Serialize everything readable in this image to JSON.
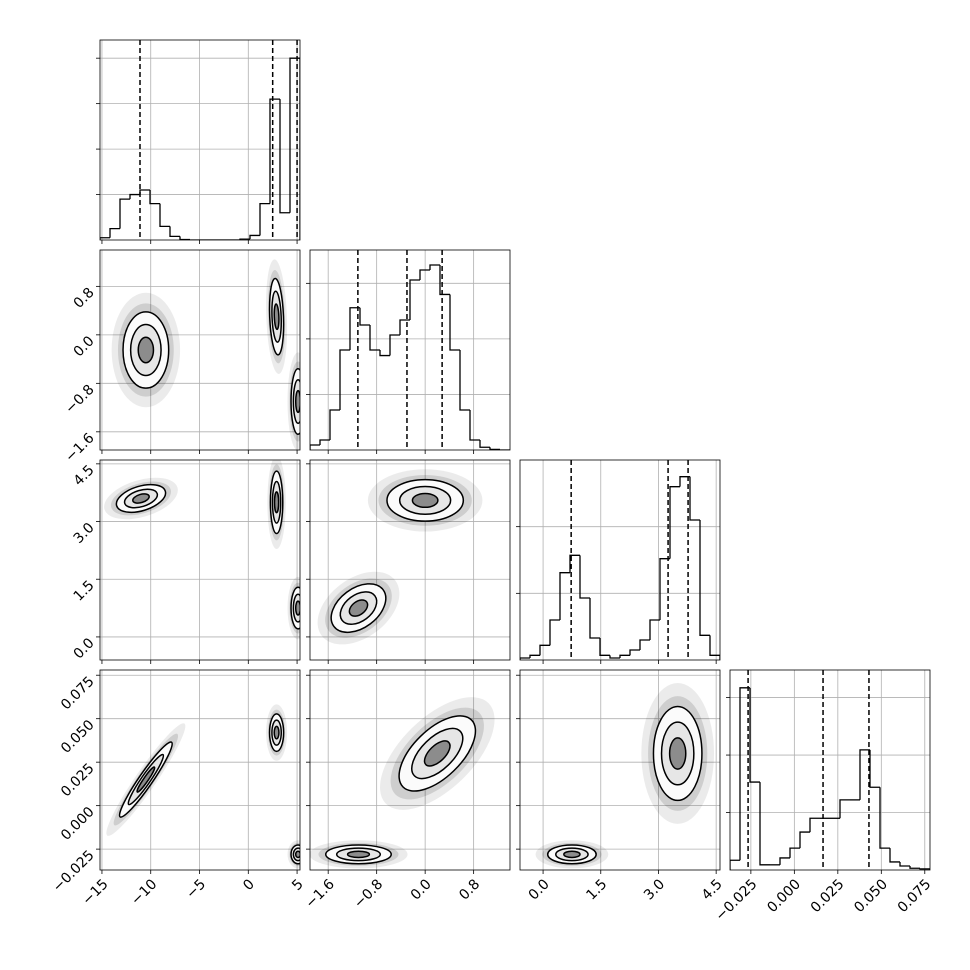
{
  "chart_data": [
    {
      "type": "histogram",
      "bins": [
        -15.2,
        -14.175,
        -13.15,
        -12.125,
        -11.1,
        -10.075,
        -9.05,
        -8.025,
        -7.0,
        -5.975,
        -4.95,
        -3.925,
        -2.9,
        -1.875,
        -0.85,
        0.175,
        1.2,
        2.225,
        3.25,
        4.275,
        5.3
      ],
      "values": [
        0.05,
        0.25,
        0.9,
        1.0,
        1.1,
        0.8,
        0.3,
        0.08,
        0.01,
        0,
        0,
        0,
        0,
        0,
        0.02,
        0.1,
        0.8,
        3.1,
        0.6,
        4.0
      ],
      "quantiles": [
        -11.1,
        2.5,
        5.0
      ],
      "xlim": [
        -15.2,
        5.3
      ],
      "xticks": [
        -15,
        -10,
        -5,
        0,
        5
      ],
      "ylim": [
        0,
        4.4
      ],
      "yticks": [
        1,
        2,
        3,
        4
      ],
      "grid": true,
      "color": "#000000"
    },
    {
      "type": "contour",
      "clusters": [
        {
          "x": -10.5,
          "y": -0.25,
          "sx": 1.3,
          "sy": 0.35,
          "rho": 0.0
        },
        {
          "x": 2.9,
          "y": 0.3,
          "sx": 0.4,
          "sy": 0.35,
          "rho": -0.2
        },
        {
          "x": 5.1,
          "y": -1.1,
          "sx": 0.4,
          "sy": 0.3,
          "rho": 0.0
        }
      ],
      "xlim": [
        -15.2,
        5.3
      ],
      "xticks": [
        -15,
        -10,
        -5,
        0,
        5
      ],
      "ylim": [
        -1.9,
        1.4
      ],
      "yticks": [
        {
          "value": -1.6,
          "label": "−1.6"
        },
        {
          "value": -0.8,
          "label": "−0.8"
        },
        {
          "value": 0,
          "label": "0.0"
        },
        0.8
      ],
      "grid": true
    },
    {
      "type": "histogram",
      "bins": [
        -1.9,
        -1.735,
        -1.57,
        -1.405,
        -1.24,
        -1.075,
        -0.91,
        -0.745,
        -0.58,
        -0.415,
        -0.25,
        -0.085,
        0.08,
        0.245,
        0.41,
        0.575,
        0.74,
        0.905,
        1.07,
        1.235,
        1.4
      ],
      "values": [
        0.09,
        0.18,
        0.72,
        1.8,
        2.56,
        2.25,
        1.8,
        1.7,
        2.07,
        2.34,
        3.06,
        3.24,
        3.33,
        2.8,
        1.8,
        0.72,
        0.18,
        0.05,
        0.01,
        0
      ],
      "quantiles": [
        -1.11,
        -0.3,
        0.28
      ],
      "xlim": [
        -1.9,
        1.4
      ],
      "xticks": [
        -1.6,
        -0.8,
        0,
        0.8
      ],
      "ylim": [
        0,
        3.6
      ],
      "yticks": [
        1,
        2,
        3
      ],
      "grid": true,
      "color": "#000000"
    },
    {
      "type": "contour",
      "clusters": [
        {
          "x": -11,
          "y": 3.6,
          "sx": 1.4,
          "sy": 0.2,
          "rho": 0.4
        },
        {
          "x": 2.9,
          "y": 3.5,
          "sx": 0.35,
          "sy": 0.45,
          "rho": 0.0
        },
        {
          "x": 5.1,
          "y": 0.75,
          "sx": 0.4,
          "sy": 0.3,
          "rho": 0.0
        }
      ],
      "xlim": [
        -15.2,
        5.3
      ],
      "xticks": [
        -15,
        -10,
        -5,
        0,
        5
      ],
      "ylim": [
        -0.6,
        4.6
      ],
      "yticks": [
        {
          "value": 0,
          "label": "0.0"
        },
        1.5,
        {
          "value": 3,
          "label": "3.0"
        },
        4.5
      ],
      "grid": true
    },
    {
      "type": "contour",
      "clusters": [
        {
          "x": -1.1,
          "y": 0.75,
          "sx": 0.25,
          "sy": 0.35,
          "rho": 0.4
        },
        {
          "x": 0.0,
          "y": 3.55,
          "sx": 0.35,
          "sy": 0.3,
          "rho": 0.0
        }
      ],
      "xlim": [
        -1.9,
        1.4
      ],
      "xticks": [
        -1.6,
        -0.8,
        0,
        0.8
      ],
      "ylim": [
        -0.6,
        4.6
      ],
      "yticks": [
        0,
        1.5,
        3,
        4.5
      ],
      "grid": true
    },
    {
      "type": "histogram",
      "bins": [
        -0.6,
        -0.34,
        -0.08,
        0.18,
        0.44,
        0.7,
        0.96,
        1.22,
        1.48,
        1.74,
        2.0,
        2.26,
        2.52,
        2.78,
        3.04,
        3.3,
        3.56,
        3.82,
        4.08,
        4.34,
        4.6
      ],
      "values": [
        0.03,
        0.07,
        0.22,
        0.6,
        1.31,
        1.57,
        0.93,
        0.33,
        0.07,
        0.03,
        0.07,
        0.15,
        0.3,
        0.6,
        1.52,
        2.6,
        2.75,
        2.1,
        0.37,
        0.07
      ],
      "quantiles": [
        0.73,
        3.25,
        3.77
      ],
      "xlim": [
        -0.6,
        4.6
      ],
      "xticks": [
        0,
        1.5,
        3,
        4.5
      ],
      "ylim": [
        0,
        3
      ],
      "yticks": [
        1,
        2
      ],
      "grid": true,
      "color": "#000000"
    },
    {
      "type": "contour",
      "clusters": [
        {
          "x": -10.5,
          "y": 0.015,
          "sx": 1.5,
          "sy": 0.012,
          "rho": 0.95
        },
        {
          "x": 2.9,
          "y": 0.042,
          "sx": 0.4,
          "sy": 0.006,
          "rho": 0.0
        },
        {
          "x": 5.1,
          "y": -0.028,
          "sx": 0.4,
          "sy": 0.003,
          "rho": 0.0
        }
      ],
      "xlim": [
        -15.2,
        5.3
      ],
      "xticks": [
        {
          "value": -15,
          "label": "−15"
        },
        {
          "value": -10,
          "label": "−10"
        },
        {
          "value": -5,
          "label": "−5"
        },
        0,
        5
      ],
      "ylim": [
        -0.037,
        0.078
      ],
      "yticks": [
        {
          "value": -0.025,
          "label": "−0.025"
        },
        {
          "value": 0,
          "label": "0.000"
        },
        0.025,
        {
          "value": 0.05,
          "label": "0.050"
        },
        0.075
      ],
      "grid": true
    },
    {
      "type": "contour",
      "clusters": [
        {
          "x": -1.1,
          "y": -0.028,
          "sx": 0.3,
          "sy": 0.003,
          "rho": 0.0
        },
        {
          "x": 0.2,
          "y": 0.03,
          "sx": 0.35,
          "sy": 0.012,
          "rho": 0.6
        }
      ],
      "xlim": [
        -1.9,
        1.4
      ],
      "xticks": [
        {
          "value": -1.6,
          "label": "−1.6"
        },
        {
          "value": -0.8,
          "label": "−0.8"
        },
        {
          "value": 0,
          "label": "0.0"
        },
        0.8
      ],
      "ylim": [
        -0.037,
        0.078
      ],
      "yticks": [
        -0.025,
        0,
        0.025,
        0.05,
        0.075
      ],
      "grid": true
    },
    {
      "type": "contour",
      "clusters": [
        {
          "x": 0.75,
          "y": -0.028,
          "sx": 0.35,
          "sy": 0.003,
          "rho": 0.0
        },
        {
          "x": 3.5,
          "y": 0.03,
          "sx": 0.35,
          "sy": 0.015,
          "rho": 0.0
        }
      ],
      "xlim": [
        -0.6,
        4.6
      ],
      "xticks": [
        {
          "value": 0,
          "label": "0.0"
        },
        1.5,
        {
          "value": 3,
          "label": "3.0"
        },
        4.5
      ],
      "ylim": [
        -0.037,
        0.078
      ],
      "yticks": [
        -0.025,
        0,
        0.025,
        0.05,
        0.075
      ],
      "grid": true
    },
    {
      "type": "histogram",
      "bins": [
        -0.037,
        -0.03125,
        -0.0255,
        -0.01975,
        -0.014,
        -0.00825,
        -0.0025,
        0.00325,
        0.009,
        0.01475,
        0.0205,
        0.02625,
        0.032,
        0.03775,
        0.0435,
        0.04925,
        0.055,
        0.06075,
        0.0665,
        0.07225,
        0.078
      ],
      "values": [
        0.17,
        3.17,
        1.53,
        0.09,
        0.09,
        0.21,
        0.38,
        0.66,
        0.9,
        0.9,
        0.9,
        1.22,
        1.22,
        2.09,
        1.44,
        0.38,
        0.14,
        0.07,
        0.03,
        0.02
      ],
      "quantiles": [
        -0.0266,
        0.0165,
        0.0429
      ],
      "xlim": [
        -0.037,
        0.078
      ],
      "xticks": [
        {
          "value": -0.025,
          "label": "−0.025"
        },
        {
          "value": 0,
          "label": "0.000"
        },
        0.025,
        {
          "value": 0.05,
          "label": "0.050"
        },
        0.075
      ],
      "ylim": [
        0,
        3.48
      ],
      "yticks": [
        1,
        2,
        3
      ],
      "grid": true,
      "color": "#000000"
    }
  ]
}
